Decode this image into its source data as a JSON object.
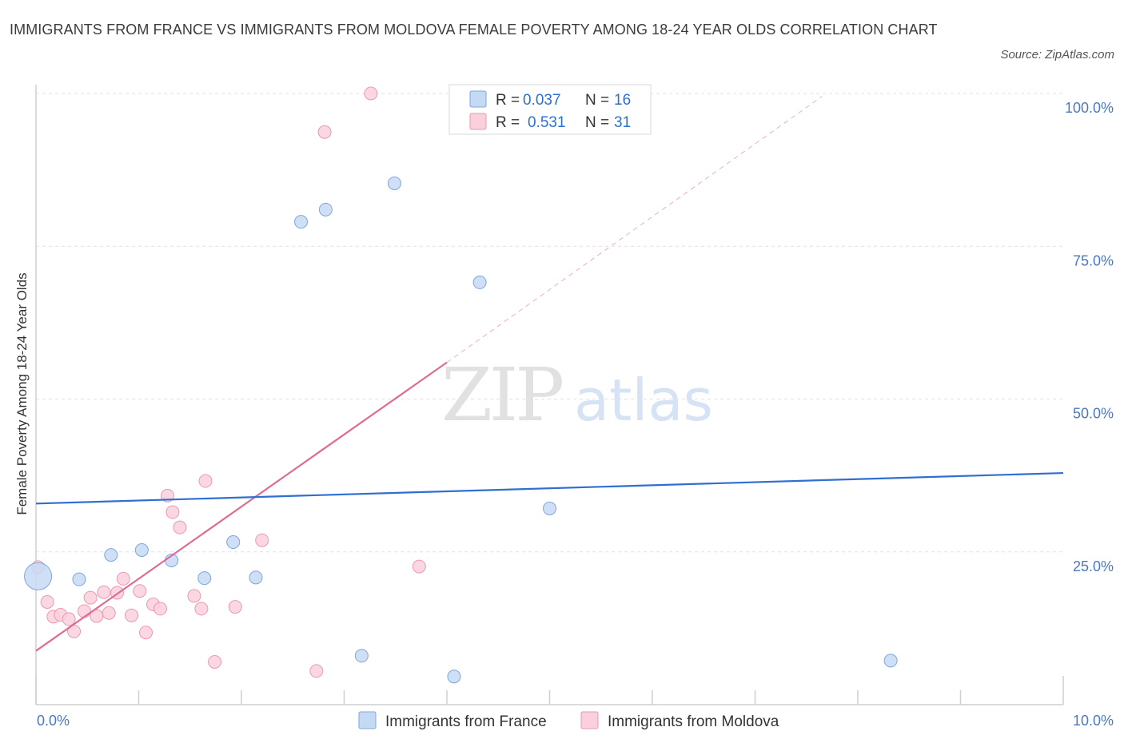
{
  "title": "IMMIGRANTS FROM FRANCE VS IMMIGRANTS FROM MOLDOVA FEMALE POVERTY AMONG 18-24 YEAR OLDS CORRELATION CHART",
  "source": "Source: ZipAtlas.com",
  "watermark": {
    "zip": "ZIP",
    "atlas": "atlas"
  },
  "colors": {
    "france_fill": "#c5d9f4",
    "france_stroke": "#7ea6dc",
    "france_line": "#2f6fd0",
    "moldova_fill": "#f9d0dc",
    "moldova_stroke": "#e99ab2",
    "moldova_line": "#e06a94",
    "tick_label": "#4a78c2",
    "grid": "#e2e2e2"
  },
  "legend_top": {
    "france": {
      "r_label": "R = ",
      "r_value": "0.037",
      "n_label": "N = ",
      "n_value": "16"
    },
    "moldova": {
      "r_label": "R = ",
      "r_value": "0.531",
      "n_label": "N = ",
      "n_value": "31"
    }
  },
  "chart_data": {
    "type": "scatter",
    "title": "IMMIGRANTS FROM FRANCE VS IMMIGRANTS FROM MOLDOVA FEMALE POVERTY AMONG 18-24 YEAR OLDS CORRELATION CHART",
    "xlabel": "",
    "ylabel": "Female Poverty Among 18-24 Year Olds",
    "xlim": [
      0,
      10
    ],
    "ylim": [
      0,
      100
    ],
    "x_tick_labels": [
      {
        "value": 0,
        "label": "0.0%"
      },
      {
        "value": 10,
        "label": "10.0%"
      }
    ],
    "y_tick_labels": [
      {
        "value": 25,
        "label": "25.0%"
      },
      {
        "value": 50,
        "label": "50.0%"
      },
      {
        "value": 75,
        "label": "75.0%"
      },
      {
        "value": 100,
        "label": "100.0%"
      }
    ],
    "grid": true,
    "legend_position": "bottom-center",
    "series": [
      {
        "name": "Immigrants from France",
        "r": 0.037,
        "n": 16,
        "points": [
          {
            "x": 0.02,
            "y": 21.0,
            "big": true
          },
          {
            "x": 0.42,
            "y": 20.5
          },
          {
            "x": 0.73,
            "y": 24.5
          },
          {
            "x": 1.03,
            "y": 25.3
          },
          {
            "x": 1.32,
            "y": 23.6
          },
          {
            "x": 1.64,
            "y": 20.7
          },
          {
            "x": 1.92,
            "y": 26.6
          },
          {
            "x": 2.14,
            "y": 20.8
          },
          {
            "x": 2.58,
            "y": 79.0
          },
          {
            "x": 2.82,
            "y": 81.0
          },
          {
            "x": 3.49,
            "y": 85.3
          },
          {
            "x": 4.32,
            "y": 69.1
          },
          {
            "x": 5.0,
            "y": 32.1
          },
          {
            "x": 3.17,
            "y": 8.0
          },
          {
            "x": 4.07,
            "y": 4.6
          },
          {
            "x": 8.32,
            "y": 7.2
          }
        ],
        "trend": {
          "x0": 0,
          "y0": 32.9,
          "x1": 10,
          "y1": 37.9
        }
      },
      {
        "name": "Immigrants from Moldova",
        "r": 0.531,
        "n": 31,
        "points": [
          {
            "x": 0.02,
            "y": 22.5
          },
          {
            "x": 0.11,
            "y": 16.8
          },
          {
            "x": 0.17,
            "y": 14.4
          },
          {
            "x": 0.24,
            "y": 14.7
          },
          {
            "x": 0.32,
            "y": 14.0
          },
          {
            "x": 0.37,
            "y": 12.0
          },
          {
            "x": 0.47,
            "y": 15.3
          },
          {
            "x": 0.53,
            "y": 17.5
          },
          {
            "x": 0.59,
            "y": 14.5
          },
          {
            "x": 0.66,
            "y": 18.4
          },
          {
            "x": 0.71,
            "y": 15.0
          },
          {
            "x": 0.79,
            "y": 18.3
          },
          {
            "x": 0.85,
            "y": 20.6
          },
          {
            "x": 0.93,
            "y": 14.6
          },
          {
            "x": 1.01,
            "y": 18.6
          },
          {
            "x": 1.07,
            "y": 11.8
          },
          {
            "x": 1.14,
            "y": 16.4
          },
          {
            "x": 1.21,
            "y": 15.7
          },
          {
            "x": 1.28,
            "y": 34.2
          },
          {
            "x": 1.33,
            "y": 31.5
          },
          {
            "x": 1.4,
            "y": 29.0
          },
          {
            "x": 1.54,
            "y": 17.8
          },
          {
            "x": 1.61,
            "y": 15.7
          },
          {
            "x": 1.65,
            "y": 36.6
          },
          {
            "x": 1.74,
            "y": 7.0
          },
          {
            "x": 1.94,
            "y": 16.0
          },
          {
            "x": 2.2,
            "y": 26.9
          },
          {
            "x": 2.73,
            "y": 5.5
          },
          {
            "x": 2.81,
            "y": 93.7
          },
          {
            "x": 3.26,
            "y": 100.0
          },
          {
            "x": 3.73,
            "y": 22.6
          }
        ],
        "trend": {
          "x0": 0,
          "y0": 8.8,
          "x1": 4.0,
          "y1": 56.0
        },
        "trend_extension": {
          "x0": 4.0,
          "y0": 56.0,
          "x1": 7.65,
          "y1": 99.5
        }
      }
    ]
  }
}
